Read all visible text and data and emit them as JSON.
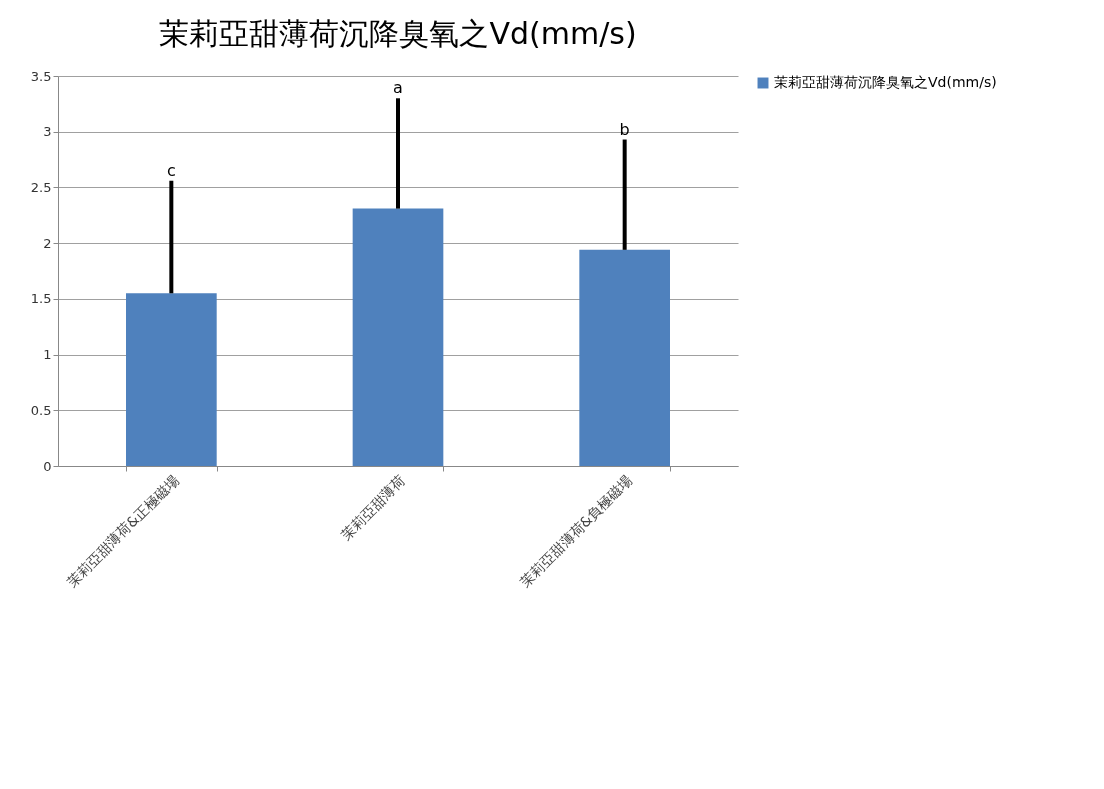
{
  "chart_data": {
    "type": "bar",
    "title": "茉莉亞甜薄荷沉降臭氧之Vd(mm/s)",
    "categories": [
      "茉莉亞甜薄荷&正極磁場",
      "茉莉亞甜薄荷",
      "茉莉亞甜薄荷&負極磁場"
    ],
    "series": [
      {
        "name": "茉莉亞甜薄荷沉降臭氧之Vd(mm/s)",
        "color": "#4f81bd",
        "values": [
          1.55,
          2.31,
          1.94
        ],
        "errors": [
          [
            1.55,
            2.56
          ],
          [
            2.31,
            3.3
          ],
          [
            1.94,
            2.93
          ]
        ]
      }
    ],
    "annotations": [
      {
        "text": "c",
        "x": "茉莉亞甜薄荷&正極磁場",
        "y": 2.56
      },
      {
        "text": "a",
        "x": "茉莉亞甜薄荷",
        "y": 3.3
      },
      {
        "text": "b",
        "x": "茉莉亞甜薄荷&負極磁場",
        "y": 2.93
      }
    ],
    "ylim": [
      0,
      3.5
    ],
    "yticks": [
      0,
      0.5,
      1,
      1.5,
      2,
      2.5,
      3,
      3.5
    ],
    "grid": "y",
    "legend": "right"
  }
}
